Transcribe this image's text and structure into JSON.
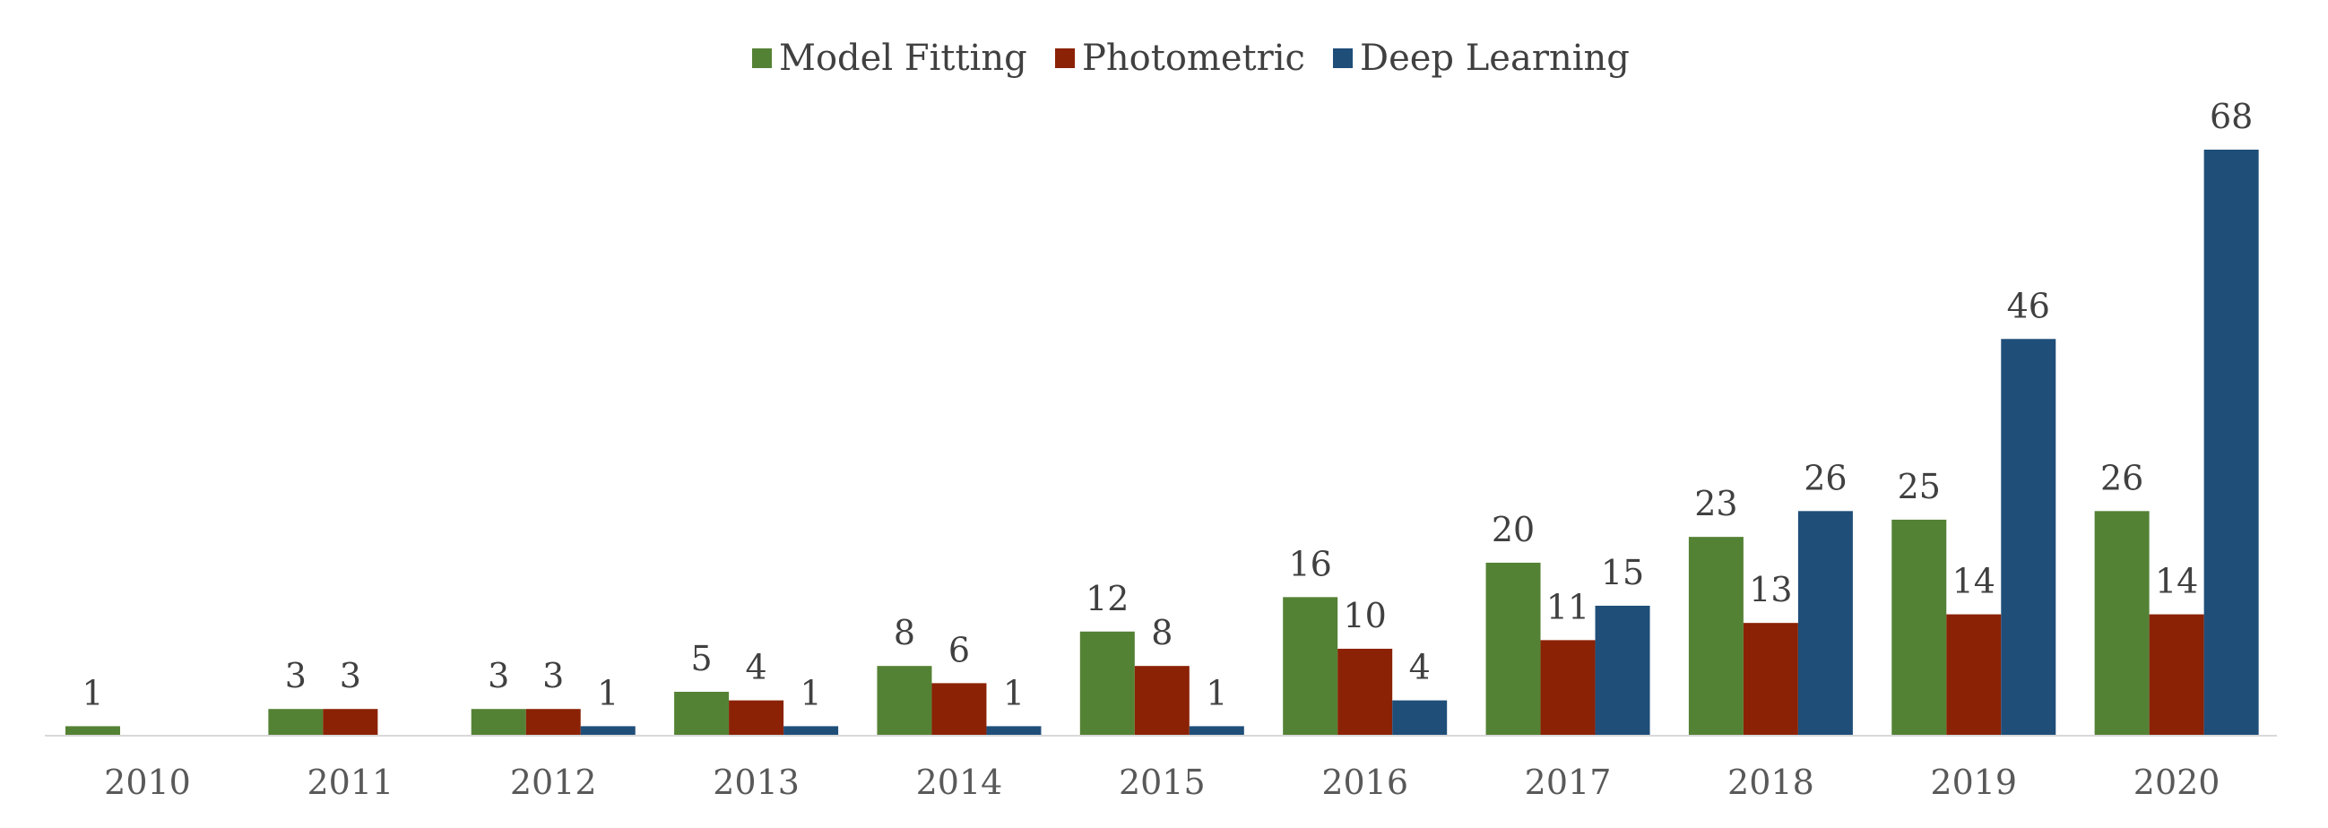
{
  "chart_data": {
    "type": "bar",
    "title": "",
    "xlabel": "",
    "ylabel": "",
    "ylim": [
      0,
      68
    ],
    "grid": false,
    "legend_position": "top-center",
    "categories": [
      "2010",
      "2011",
      "2012",
      "2013",
      "2014",
      "2015",
      "2016",
      "2017",
      "2018",
      "2019",
      "2020"
    ],
    "series": [
      {
        "name": "Model Fitting",
        "color": "#548235",
        "values": [
          1,
          3,
          3,
          5,
          8,
          12,
          16,
          20,
          23,
          25,
          26
        ]
      },
      {
        "name": "Photometric",
        "color": "#8B2205",
        "values": [
          0,
          3,
          3,
          4,
          6,
          8,
          10,
          11,
          13,
          14,
          14
        ]
      },
      {
        "name": "Deep Learning",
        "color": "#1F4E79",
        "values": [
          0,
          0,
          1,
          1,
          1,
          1,
          4,
          15,
          26,
          46,
          68
        ]
      }
    ]
  }
}
